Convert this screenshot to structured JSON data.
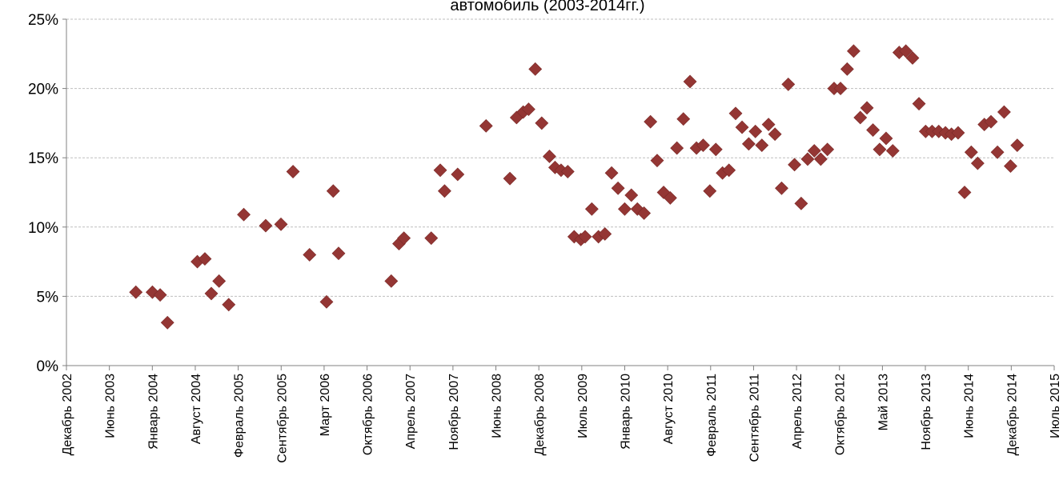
{
  "chart_data": {
    "type": "scatter",
    "title_visible_fragment": "автомобиль (2003-2014гг.)",
    "xlabel": "",
    "ylabel": "",
    "x_axis_type": "date",
    "xlim": [
      "2002-12-01",
      "2015-07-01"
    ],
    "ylim": [
      0,
      25
    ],
    "y_ticks": [
      "0%",
      "5%",
      "10%",
      "15%",
      "20%",
      "25%"
    ],
    "x_ticks": [
      "Декабрь 2002",
      "Июнь 2003",
      "Январь 2004",
      "Август 2004",
      "Февраль 2005",
      "Сентябрь 2005",
      "Март 2006",
      "Октябрь 2006",
      "Апрель 2007",
      "Ноябрь 2007",
      "Июнь 2008",
      "Декабрь 2008",
      "Июль 2009",
      "Январь 2010",
      "Август 2010",
      "Февраль 2011",
      "Сентябрь 2011",
      "Апрель 2012",
      "Октябрь 2012",
      "Май 2013",
      "Ноябрь 2013",
      "Июнь 2014",
      "Декабрь 2014",
      "Июль 2015"
    ],
    "grid": "horizontal",
    "legend": "none",
    "marker": "diamond",
    "marker_color": "#943634",
    "points": [
      {
        "x": "2003-10-20",
        "y": 5.3
      },
      {
        "x": "2004-01-05",
        "y": 5.3
      },
      {
        "x": "2004-02-10",
        "y": 5.1
      },
      {
        "x": "2004-03-15",
        "y": 3.1
      },
      {
        "x": "2004-08-01",
        "y": 7.5
      },
      {
        "x": "2004-09-05",
        "y": 7.7
      },
      {
        "x": "2004-10-05",
        "y": 5.2
      },
      {
        "x": "2004-11-10",
        "y": 6.1
      },
      {
        "x": "2004-12-25",
        "y": 4.4
      },
      {
        "x": "2005-03-05",
        "y": 10.9
      },
      {
        "x": "2005-06-15",
        "y": 10.1
      },
      {
        "x": "2005-08-25",
        "y": 10.2
      },
      {
        "x": "2005-10-20",
        "y": 14.0
      },
      {
        "x": "2006-01-05",
        "y": 8.0
      },
      {
        "x": "2006-03-25",
        "y": 4.6
      },
      {
        "x": "2006-04-25",
        "y": 12.6
      },
      {
        "x": "2006-05-20",
        "y": 8.1
      },
      {
        "x": "2007-01-20",
        "y": 6.1
      },
      {
        "x": "2007-02-25",
        "y": 8.8
      },
      {
        "x": "2007-03-20",
        "y": 9.2
      },
      {
        "x": "2007-07-25",
        "y": 9.2
      },
      {
        "x": "2007-09-05",
        "y": 14.1
      },
      {
        "x": "2007-09-25",
        "y": 12.6
      },
      {
        "x": "2007-11-25",
        "y": 13.8
      },
      {
        "x": "2008-04-05",
        "y": 17.3
      },
      {
        "x": "2008-07-25",
        "y": 13.5
      },
      {
        "x": "2008-08-25",
        "y": 17.9
      },
      {
        "x": "2008-09-25",
        "y": 18.3
      },
      {
        "x": "2008-10-20",
        "y": 18.5
      },
      {
        "x": "2008-11-20",
        "y": 21.4
      },
      {
        "x": "2008-12-20",
        "y": 17.5
      },
      {
        "x": "2009-01-25",
        "y": 15.1
      },
      {
        "x": "2009-02-20",
        "y": 14.3
      },
      {
        "x": "2009-03-20",
        "y": 14.1
      },
      {
        "x": "2009-04-20",
        "y": 14.0
      },
      {
        "x": "2009-05-20",
        "y": 9.3
      },
      {
        "x": "2009-06-20",
        "y": 9.1
      },
      {
        "x": "2009-07-10",
        "y": 9.3
      },
      {
        "x": "2009-08-10",
        "y": 11.3
      },
      {
        "x": "2009-09-10",
        "y": 9.3
      },
      {
        "x": "2009-10-10",
        "y": 9.5
      },
      {
        "x": "2009-11-10",
        "y": 13.9
      },
      {
        "x": "2009-12-10",
        "y": 12.8
      },
      {
        "x": "2010-01-10",
        "y": 11.3
      },
      {
        "x": "2010-02-10",
        "y": 12.3
      },
      {
        "x": "2010-03-10",
        "y": 11.3
      },
      {
        "x": "2010-04-10",
        "y": 11.0
      },
      {
        "x": "2010-05-10",
        "y": 17.6
      },
      {
        "x": "2010-06-10",
        "y": 14.8
      },
      {
        "x": "2010-07-10",
        "y": 12.5
      },
      {
        "x": "2010-08-10",
        "y": 12.1
      },
      {
        "x": "2010-09-10",
        "y": 15.7
      },
      {
        "x": "2010-10-10",
        "y": 17.8
      },
      {
        "x": "2010-11-10",
        "y": 20.5
      },
      {
        "x": "2010-12-10",
        "y": 15.7
      },
      {
        "x": "2011-01-10",
        "y": 15.9
      },
      {
        "x": "2011-02-10",
        "y": 12.6
      },
      {
        "x": "2011-03-10",
        "y": 15.6
      },
      {
        "x": "2011-04-10",
        "y": 13.9
      },
      {
        "x": "2011-05-10",
        "y": 14.1
      },
      {
        "x": "2011-06-10",
        "y": 18.2
      },
      {
        "x": "2011-07-10",
        "y": 17.2
      },
      {
        "x": "2011-08-10",
        "y": 16.0
      },
      {
        "x": "2011-09-10",
        "y": 16.9
      },
      {
        "x": "2011-10-10",
        "y": 15.9
      },
      {
        "x": "2011-11-10",
        "y": 17.4
      },
      {
        "x": "2011-12-10",
        "y": 16.7
      },
      {
        "x": "2012-01-10",
        "y": 12.8
      },
      {
        "x": "2012-02-10",
        "y": 20.3
      },
      {
        "x": "2012-03-10",
        "y": 14.5
      },
      {
        "x": "2012-04-10",
        "y": 11.7
      },
      {
        "x": "2012-05-10",
        "y": 14.9
      },
      {
        "x": "2012-06-10",
        "y": 15.5
      },
      {
        "x": "2012-07-10",
        "y": 14.9
      },
      {
        "x": "2012-08-10",
        "y": 15.6
      },
      {
        "x": "2012-09-10",
        "y": 20.0
      },
      {
        "x": "2012-10-10",
        "y": 20.0
      },
      {
        "x": "2012-11-10",
        "y": 21.4
      },
      {
        "x": "2012-12-10",
        "y": 22.7
      },
      {
        "x": "2013-01-10",
        "y": 17.9
      },
      {
        "x": "2013-02-10",
        "y": 18.6
      },
      {
        "x": "2013-03-10",
        "y": 17.0
      },
      {
        "x": "2013-04-10",
        "y": 15.6
      },
      {
        "x": "2013-05-10",
        "y": 16.4
      },
      {
        "x": "2013-06-10",
        "y": 15.5
      },
      {
        "x": "2013-07-10",
        "y": 22.6
      },
      {
        "x": "2013-08-10",
        "y": 22.7
      },
      {
        "x": "2013-09-10",
        "y": 22.2
      },
      {
        "x": "2013-10-10",
        "y": 18.9
      },
      {
        "x": "2013-11-10",
        "y": 16.9
      },
      {
        "x": "2013-12-10",
        "y": 16.9
      },
      {
        "x": "2014-01-10",
        "y": 16.9
      },
      {
        "x": "2014-02-10",
        "y": 16.8
      },
      {
        "x": "2014-03-10",
        "y": 16.7
      },
      {
        "x": "2014-04-10",
        "y": 16.8
      },
      {
        "x": "2014-05-10",
        "y": 12.5
      },
      {
        "x": "2014-06-10",
        "y": 15.4
      },
      {
        "x": "2014-07-10",
        "y": 14.6
      },
      {
        "x": "2014-08-10",
        "y": 17.4
      },
      {
        "x": "2014-09-10",
        "y": 17.6
      },
      {
        "x": "2014-10-10",
        "y": 15.4
      },
      {
        "x": "2014-11-10",
        "y": 18.3
      },
      {
        "x": "2014-12-10",
        "y": 14.4
      },
      {
        "x": "2015-01-10",
        "y": 15.9
      }
    ]
  }
}
